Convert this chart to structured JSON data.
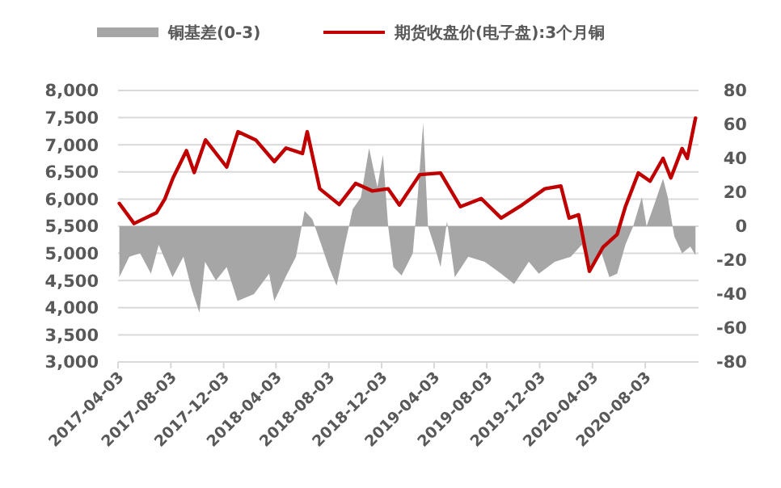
{
  "chart_data": {
    "type": "line",
    "legend": "top",
    "grid": "y",
    "xlim": [
      "2017-04-03",
      "2020-12-04"
    ],
    "xticks": [
      "2017-04-03",
      "2017-08-03",
      "2017-12-03",
      "2018-04-03",
      "2018-08-03",
      "2018-12-03",
      "2019-04-03",
      "2019-08-03",
      "2019-12-03",
      "2020-04-03",
      "2020-08-03"
    ],
    "ylim": [
      3000,
      8000
    ],
    "yticks": [
      {
        "value": 3000,
        "label": "3,000"
      },
      {
        "value": 3500,
        "label": "3,500"
      },
      {
        "value": 4000,
        "label": "4,000"
      },
      {
        "value": 4500,
        "label": "4,500"
      },
      {
        "value": 5000,
        "label": "5,000"
      },
      {
        "value": 5500,
        "label": "5,500"
      },
      {
        "value": 6000,
        "label": "6,000"
      },
      {
        "value": 6500,
        "label": "6,500"
      },
      {
        "value": 7000,
        "label": "7,000"
      },
      {
        "value": 7500,
        "label": "7,500"
      },
      {
        "value": 8000,
        "label": "8,000"
      }
    ],
    "y2lim": [
      -80,
      80
    ],
    "y2ticks": [
      -80,
      -60,
      -40,
      -20,
      0,
      20,
      40,
      60,
      80
    ],
    "series": [
      {
        "name": "铜基差(0-3)",
        "type": "area",
        "axis": "y2",
        "color": "#a6a6a6",
        "x": [
          "2017-04-06",
          "2017-04-29",
          "2017-05-24",
          "2017-06-18",
          "2017-07-06",
          "2017-08-07",
          "2017-09-01",
          "2017-09-20",
          "2017-10-08",
          "2017-10-21",
          "2017-11-15",
          "2017-12-10",
          "2018-01-04",
          "2018-02-11",
          "2018-03-18",
          "2018-03-30",
          "2018-04-25",
          "2018-05-19",
          "2018-06-08",
          "2018-06-26",
          "2018-07-14",
          "2018-08-03",
          "2018-08-21",
          "2018-09-09",
          "2018-09-27",
          "2018-10-16",
          "2018-11-04",
          "2018-11-23",
          "2018-12-06",
          "2018-12-18",
          "2018-12-30",
          "2019-01-18",
          "2019-02-13",
          "2019-02-24",
          "2019-03-09",
          "2019-03-20",
          "2019-04-09",
          "2019-04-18",
          "2019-05-03",
          "2019-05-21",
          "2019-06-21",
          "2019-07-29",
          "2019-09-05",
          "2019-10-05",
          "2019-11-08",
          "2019-12-01",
          "2020-01-07",
          "2020-02-13",
          "2020-03-09",
          "2020-03-27",
          "2020-04-24",
          "2020-05-12",
          "2020-05-30",
          "2020-06-18",
          "2020-07-06",
          "2020-07-26",
          "2020-08-06",
          "2020-08-24",
          "2020-09-13",
          "2020-09-24",
          "2020-10-09",
          "2020-10-27",
          "2020-11-15",
          "2020-11-27"
        ],
        "values": [
          -30,
          -18,
          -16,
          -28,
          -11,
          -30,
          -18,
          -37,
          -51,
          -21,
          -32,
          -24,
          -44,
          -40,
          -28,
          -44,
          -30,
          -18,
          9,
          4,
          -9,
          -24,
          -35,
          -11,
          10,
          17,
          46,
          23,
          42,
          0,
          -24,
          -29,
          -16,
          17,
          61,
          0,
          -16,
          -24,
          3,
          -30,
          -18,
          -21,
          -28,
          -34,
          -21,
          -28,
          -21,
          -18,
          -11,
          -24,
          -16,
          -30,
          -28,
          -11,
          0,
          17,
          0,
          13,
          28,
          17,
          -6,
          -16,
          -12,
          -17
        ]
      },
      {
        "name": "期货收盘价(电子盘):3个月铜",
        "color": "#c00000",
        "x": [
          "2017-04-06",
          "2017-05-10",
          "2017-07-01",
          "2017-07-20",
          "2017-08-08",
          "2017-09-08",
          "2017-09-26",
          "2017-10-22",
          "2017-12-10",
          "2018-01-05",
          "2018-02-15",
          "2018-03-30",
          "2018-04-26",
          "2018-06-03",
          "2018-06-14",
          "2018-07-13",
          "2018-08-27",
          "2018-10-04",
          "2018-11-11",
          "2018-12-18",
          "2019-01-13",
          "2019-03-01",
          "2019-04-18",
          "2019-06-03",
          "2019-07-21",
          "2019-09-05",
          "2019-10-23",
          "2019-12-15",
          "2020-01-21",
          "2020-02-09",
          "2020-03-02",
          "2020-03-27",
          "2020-04-27",
          "2020-05-30",
          "2020-06-18",
          "2020-07-18",
          "2020-08-14",
          "2020-09-13",
          "2020-10-01",
          "2020-10-27",
          "2020-11-08",
          "2020-11-27"
        ],
        "values": [
          5920,
          5550,
          5750,
          6000,
          6390,
          6890,
          6490,
          7090,
          6590,
          7240,
          7090,
          6690,
          6940,
          6840,
          7240,
          6190,
          5900,
          6290,
          6150,
          6190,
          5890,
          6450,
          6480,
          5860,
          6010,
          5650,
          5890,
          6190,
          6240,
          5650,
          5710,
          4670,
          5110,
          5350,
          5860,
          6480,
          6330,
          6750,
          6390,
          6930,
          6750,
          7490
        ]
      }
    ]
  }
}
